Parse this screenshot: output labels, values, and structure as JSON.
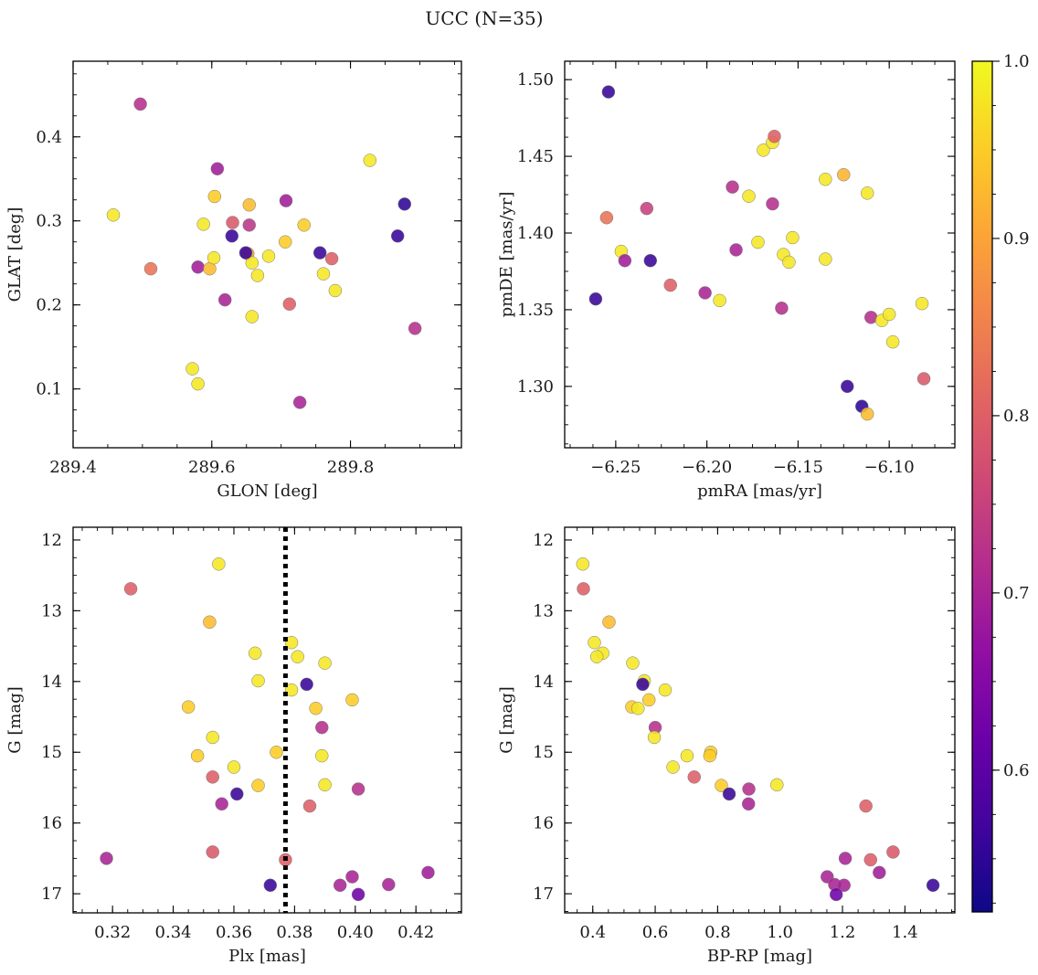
{
  "figure": {
    "title": "UCC (N=35)"
  },
  "colorbar": {
    "min": 0.52,
    "max": 1.0,
    "ticks": [
      0.6,
      0.7,
      0.8,
      0.9,
      1.0
    ],
    "tick_labels": [
      "0.6",
      "0.7",
      "0.8",
      "0.9",
      "1.0"
    ],
    "colormap": "plasma"
  },
  "chart_data": [
    {
      "type": "scatter",
      "title": "",
      "xlabel": "GLON [deg]",
      "ylabel": "GLAT [deg]",
      "xlim": [
        289.4,
        289.96
      ],
      "ylim": [
        0.03,
        0.49
      ],
      "y_inverted": false,
      "grid": false,
      "xticks": [
        289.4,
        289.6,
        289.8
      ],
      "xtick_labels": [
        "289.4",
        "289.6",
        "289.8"
      ],
      "yticks": [
        0.1,
        0.2,
        0.3,
        0.4
      ],
      "ytick_labels": [
        "0.1",
        "0.2",
        "0.3",
        "0.4"
      ],
      "points": [
        {
          "x": 289.497,
          "y": 0.439,
          "c": 0.72
        },
        {
          "x": 289.458,
          "y": 0.307,
          "c": 0.98
        },
        {
          "x": 289.512,
          "y": 0.243,
          "c": 0.83
        },
        {
          "x": 289.58,
          "y": 0.245,
          "c": 0.69
        },
        {
          "x": 289.588,
          "y": 0.296,
          "c": 0.98
        },
        {
          "x": 289.597,
          "y": 0.243,
          "c": 0.93
        },
        {
          "x": 289.603,
          "y": 0.256,
          "c": 0.98
        },
        {
          "x": 289.604,
          "y": 0.329,
          "c": 0.95
        },
        {
          "x": 289.608,
          "y": 0.362,
          "c": 0.69
        },
        {
          "x": 289.619,
          "y": 0.206,
          "c": 0.7
        },
        {
          "x": 289.629,
          "y": 0.282,
          "c": 0.56
        },
        {
          "x": 289.63,
          "y": 0.298,
          "c": 0.79
        },
        {
          "x": 289.652,
          "y": 0.261,
          "c": 0.9
        },
        {
          "x": 289.654,
          "y": 0.295,
          "c": 0.73
        },
        {
          "x": 289.654,
          "y": 0.319,
          "c": 0.93
        },
        {
          "x": 289.658,
          "y": 0.25,
          "c": 0.98
        },
        {
          "x": 289.658,
          "y": 0.186,
          "c": 0.98
        },
        {
          "x": 289.666,
          "y": 0.235,
          "c": 0.98
        },
        {
          "x": 289.682,
          "y": 0.258,
          "c": 0.98
        },
        {
          "x": 289.706,
          "y": 0.275,
          "c": 0.95
        },
        {
          "x": 289.707,
          "y": 0.324,
          "c": 0.69
        },
        {
          "x": 289.712,
          "y": 0.201,
          "c": 0.8
        },
        {
          "x": 289.727,
          "y": 0.084,
          "c": 0.7
        },
        {
          "x": 289.733,
          "y": 0.295,
          "c": 0.95
        },
        {
          "x": 289.756,
          "y": 0.262,
          "c": 0.56
        },
        {
          "x": 289.761,
          "y": 0.237,
          "c": 0.98
        },
        {
          "x": 289.773,
          "y": 0.255,
          "c": 0.8
        },
        {
          "x": 289.778,
          "y": 0.217,
          "c": 0.98
        },
        {
          "x": 289.828,
          "y": 0.372,
          "c": 0.98
        },
        {
          "x": 289.868,
          "y": 0.282,
          "c": 0.56
        },
        {
          "x": 289.878,
          "y": 0.32,
          "c": 0.55
        },
        {
          "x": 289.893,
          "y": 0.172,
          "c": 0.72
        },
        {
          "x": 289.572,
          "y": 0.124,
          "c": 0.98
        },
        {
          "x": 289.58,
          "y": 0.106,
          "c": 0.98
        },
        {
          "x": 289.649,
          "y": 0.262,
          "c": 0.56
        }
      ]
    },
    {
      "type": "scatter",
      "title": "",
      "xlabel": "pmRA [mas/yr]",
      "ylabel": "pmDE [mas/yr]",
      "xlim": [
        -6.278,
        -6.064
      ],
      "ylim": [
        1.26,
        1.512
      ],
      "y_inverted": false,
      "grid": false,
      "xticks": [
        -6.25,
        -6.2,
        -6.15,
        -6.1
      ],
      "xtick_labels": [
        "−6.25",
        "−6.20",
        "−6.15",
        "−6.10"
      ],
      "yticks": [
        1.3,
        1.35,
        1.4,
        1.45,
        1.5
      ],
      "ytick_labels": [
        "1.30",
        "1.35",
        "1.40",
        "1.45",
        "1.50"
      ],
      "points": [
        {
          "x": -6.254,
          "y": 1.492,
          "c": 0.56
        },
        {
          "x": -6.261,
          "y": 1.357,
          "c": 0.56
        },
        {
          "x": -6.255,
          "y": 1.41,
          "c": 0.83
        },
        {
          "x": -6.247,
          "y": 1.388,
          "c": 0.98
        },
        {
          "x": -6.245,
          "y": 1.382,
          "c": 0.69
        },
        {
          "x": -6.233,
          "y": 1.416,
          "c": 0.75
        },
        {
          "x": -6.231,
          "y": 1.382,
          "c": 0.56
        },
        {
          "x": -6.22,
          "y": 1.366,
          "c": 0.8
        },
        {
          "x": -6.201,
          "y": 1.361,
          "c": 0.7
        },
        {
          "x": -6.193,
          "y": 1.356,
          "c": 0.98
        },
        {
          "x": -6.186,
          "y": 1.43,
          "c": 0.72
        },
        {
          "x": -6.184,
          "y": 1.389,
          "c": 0.7
        },
        {
          "x": -6.177,
          "y": 1.424,
          "c": 0.98
        },
        {
          "x": -6.172,
          "y": 1.394,
          "c": 0.98
        },
        {
          "x": -6.169,
          "y": 1.454,
          "c": 0.98
        },
        {
          "x": -6.164,
          "y": 1.459,
          "c": 0.98
        },
        {
          "x": -6.163,
          "y": 1.463,
          "c": 0.8
        },
        {
          "x": -6.164,
          "y": 1.419,
          "c": 0.72
        },
        {
          "x": -6.159,
          "y": 1.351,
          "c": 0.72
        },
        {
          "x": -6.158,
          "y": 1.386,
          "c": 0.98
        },
        {
          "x": -6.155,
          "y": 1.381,
          "c": 0.98
        },
        {
          "x": -6.153,
          "y": 1.397,
          "c": 0.98
        },
        {
          "x": -6.135,
          "y": 1.435,
          "c": 0.98
        },
        {
          "x": -6.135,
          "y": 1.383,
          "c": 0.98
        },
        {
          "x": -6.125,
          "y": 1.438,
          "c": 0.92
        },
        {
          "x": -6.123,
          "y": 1.3,
          "c": 0.56
        },
        {
          "x": -6.115,
          "y": 1.287,
          "c": 0.55
        },
        {
          "x": -6.112,
          "y": 1.282,
          "c": 0.93
        },
        {
          "x": -6.112,
          "y": 1.426,
          "c": 0.98
        },
        {
          "x": -6.11,
          "y": 1.345,
          "c": 0.72
        },
        {
          "x": -6.104,
          "y": 1.343,
          "c": 0.98
        },
        {
          "x": -6.1,
          "y": 1.347,
          "c": 0.98
        },
        {
          "x": -6.098,
          "y": 1.329,
          "c": 0.98
        },
        {
          "x": -6.082,
          "y": 1.354,
          "c": 0.98
        },
        {
          "x": -6.081,
          "y": 1.305,
          "c": 0.79
        }
      ]
    },
    {
      "type": "scatter",
      "title": "",
      "xlabel": "Plx [mas]",
      "ylabel": "G [mag]",
      "xlim": [
        0.307,
        0.435
      ],
      "ylim": [
        11.82,
        17.27
      ],
      "y_inverted": true,
      "grid": false,
      "xticks": [
        0.32,
        0.34,
        0.36,
        0.38,
        0.4,
        0.42
      ],
      "xtick_labels": [
        "0.32",
        "0.34",
        "0.36",
        "0.38",
        "0.40",
        "0.42"
      ],
      "yticks": [
        12,
        13,
        14,
        15,
        16,
        17
      ],
      "ytick_labels": [
        "12",
        "13",
        "14",
        "15",
        "16",
        "17"
      ],
      "vline": {
        "x": 0.377
      },
      "points": [
        {
          "x": 0.355,
          "y": 12.34,
          "c": 0.98
        },
        {
          "x": 0.326,
          "y": 12.69,
          "c": 0.8
        },
        {
          "x": 0.352,
          "y": 13.16,
          "c": 0.93
        },
        {
          "x": 0.379,
          "y": 13.45,
          "c": 0.98
        },
        {
          "x": 0.367,
          "y": 13.6,
          "c": 0.98
        },
        {
          "x": 0.381,
          "y": 13.65,
          "c": 0.98
        },
        {
          "x": 0.39,
          "y": 13.74,
          "c": 0.98
        },
        {
          "x": 0.368,
          "y": 13.99,
          "c": 0.98
        },
        {
          "x": 0.384,
          "y": 14.04,
          "c": 0.56
        },
        {
          "x": 0.379,
          "y": 14.12,
          "c": 0.98
        },
        {
          "x": 0.399,
          "y": 14.26,
          "c": 0.95
        },
        {
          "x": 0.345,
          "y": 14.36,
          "c": 0.95
        },
        {
          "x": 0.387,
          "y": 14.38,
          "c": 0.95
        },
        {
          "x": 0.389,
          "y": 14.65,
          "c": 0.72
        },
        {
          "x": 0.353,
          "y": 14.79,
          "c": 0.98
        },
        {
          "x": 0.374,
          "y": 15.0,
          "c": 0.95
        },
        {
          "x": 0.348,
          "y": 15.05,
          "c": 0.95
        },
        {
          "x": 0.389,
          "y": 15.05,
          "c": 0.98
        },
        {
          "x": 0.36,
          "y": 15.21,
          "c": 0.98
        },
        {
          "x": 0.353,
          "y": 15.35,
          "c": 0.8
        },
        {
          "x": 0.39,
          "y": 15.46,
          "c": 0.98
        },
        {
          "x": 0.368,
          "y": 15.47,
          "c": 0.95
        },
        {
          "x": 0.401,
          "y": 15.52,
          "c": 0.72
        },
        {
          "x": 0.361,
          "y": 15.59,
          "c": 0.56
        },
        {
          "x": 0.356,
          "y": 15.73,
          "c": 0.7
        },
        {
          "x": 0.385,
          "y": 15.76,
          "c": 0.8
        },
        {
          "x": 0.353,
          "y": 16.41,
          "c": 0.79
        },
        {
          "x": 0.318,
          "y": 16.5,
          "c": 0.7
        },
        {
          "x": 0.377,
          "y": 16.52,
          "c": 0.8
        },
        {
          "x": 0.424,
          "y": 16.7,
          "c": 0.69
        },
        {
          "x": 0.399,
          "y": 16.76,
          "c": 0.7
        },
        {
          "x": 0.372,
          "y": 16.88,
          "c": 0.56
        },
        {
          "x": 0.395,
          "y": 16.88,
          "c": 0.7
        },
        {
          "x": 0.411,
          "y": 16.87,
          "c": 0.7
        },
        {
          "x": 0.401,
          "y": 17.01,
          "c": 0.62
        }
      ]
    },
    {
      "type": "scatter",
      "title": "",
      "xlabel": "BP-RP [mag]",
      "ylabel": "G [mag]",
      "xlim": [
        0.31,
        1.56
      ],
      "ylim": [
        11.82,
        17.27
      ],
      "y_inverted": true,
      "grid": false,
      "xticks": [
        0.4,
        0.6,
        0.8,
        1.0,
        1.2,
        1.4
      ],
      "xtick_labels": [
        "0.4",
        "0.6",
        "0.8",
        "1.0",
        "1.2",
        "1.4"
      ],
      "yticks": [
        12,
        13,
        14,
        15,
        16,
        17
      ],
      "ytick_labels": [
        "12",
        "13",
        "14",
        "15",
        "16",
        "17"
      ],
      "points": [
        {
          "x": 0.368,
          "y": 12.34,
          "c": 0.98
        },
        {
          "x": 0.37,
          "y": 12.69,
          "c": 0.8
        },
        {
          "x": 0.452,
          "y": 13.16,
          "c": 0.93
        },
        {
          "x": 0.405,
          "y": 13.45,
          "c": 0.98
        },
        {
          "x": 0.432,
          "y": 13.6,
          "c": 0.98
        },
        {
          "x": 0.413,
          "y": 13.65,
          "c": 0.98
        },
        {
          "x": 0.528,
          "y": 13.74,
          "c": 0.98
        },
        {
          "x": 0.565,
          "y": 13.99,
          "c": 0.98
        },
        {
          "x": 0.56,
          "y": 14.04,
          "c": 0.56
        },
        {
          "x": 0.632,
          "y": 14.12,
          "c": 0.98
        },
        {
          "x": 0.58,
          "y": 14.26,
          "c": 0.95
        },
        {
          "x": 0.525,
          "y": 14.36,
          "c": 0.95
        },
        {
          "x": 0.545,
          "y": 14.38,
          "c": 0.98
        },
        {
          "x": 0.6,
          "y": 14.65,
          "c": 0.72
        },
        {
          "x": 0.597,
          "y": 14.79,
          "c": 0.98
        },
        {
          "x": 0.778,
          "y": 15.0,
          "c": 0.95
        },
        {
          "x": 0.702,
          "y": 15.05,
          "c": 0.98
        },
        {
          "x": 0.775,
          "y": 15.05,
          "c": 0.95
        },
        {
          "x": 0.657,
          "y": 15.21,
          "c": 0.98
        },
        {
          "x": 0.725,
          "y": 15.35,
          "c": 0.8
        },
        {
          "x": 0.99,
          "y": 15.46,
          "c": 0.98
        },
        {
          "x": 0.812,
          "y": 15.47,
          "c": 0.95
        },
        {
          "x": 0.9,
          "y": 15.52,
          "c": 0.72
        },
        {
          "x": 0.837,
          "y": 15.59,
          "c": 0.56
        },
        {
          "x": 0.899,
          "y": 15.73,
          "c": 0.7
        },
        {
          "x": 1.275,
          "y": 15.76,
          "c": 0.8
        },
        {
          "x": 1.362,
          "y": 16.41,
          "c": 0.79
        },
        {
          "x": 1.209,
          "y": 16.5,
          "c": 0.7
        },
        {
          "x": 1.29,
          "y": 16.52,
          "c": 0.8
        },
        {
          "x": 1.318,
          "y": 16.7,
          "c": 0.69
        },
        {
          "x": 1.151,
          "y": 16.76,
          "c": 0.7
        },
        {
          "x": 1.49,
          "y": 16.88,
          "c": 0.56
        },
        {
          "x": 1.175,
          "y": 16.87,
          "c": 0.7
        },
        {
          "x": 1.205,
          "y": 16.88,
          "c": 0.7
        },
        {
          "x": 1.18,
          "y": 17.01,
          "c": 0.62
        }
      ]
    }
  ]
}
